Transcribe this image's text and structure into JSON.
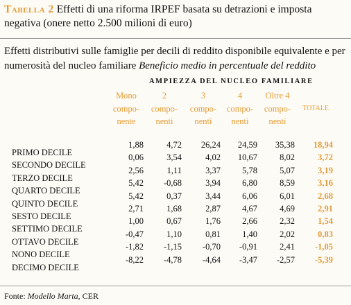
{
  "header": {
    "label": "Tabella 2",
    "title": "Effetti di una riforma IRPEF basata su detrazioni e imposta negativa (onere netto 2.500 milioni di euro)"
  },
  "subtitle": {
    "text": "Effetti distributivi sulle famiglie per decili di reddito disponibile equivalente e per numerosità del nucleo familiare",
    "emphasis": "Beneficio medio in percentuale del reddito"
  },
  "table": {
    "group_header": "AMPIEZZA DEL NUCLEO FAMILIARE",
    "columns": [
      [
        "Mono",
        "compo-",
        "nente"
      ],
      [
        "2",
        "compo-",
        "nenti"
      ],
      [
        "3",
        "compo-",
        "nenti"
      ],
      [
        "4",
        "compo-",
        "nenti"
      ],
      [
        "Oltre 4",
        "compo-",
        "nenti"
      ],
      [
        "TOTALE"
      ]
    ],
    "rows": [
      {
        "label": "PRIMO DECILE",
        "values": [
          "1,88",
          "4,72",
          "26,24",
          "24,59",
          "35,38",
          "18,94"
        ]
      },
      {
        "label": "SECONDO DECILE",
        "values": [
          "0,06",
          "3,54",
          "4,02",
          "10,67",
          "8,02",
          "3,72"
        ]
      },
      {
        "label": "TERZO DECILE",
        "values": [
          "2,56",
          "1,11",
          "3,37",
          "5,78",
          "5,07",
          "3,19"
        ]
      },
      {
        "label": "QUARTO DECILE",
        "values": [
          "5,42",
          "-0,68",
          "3,94",
          "6,80",
          "8,59",
          "3,16"
        ]
      },
      {
        "label": "QUINTO DECILE",
        "values": [
          "5,42",
          "0,37",
          "3,44",
          "6,06",
          "6,01",
          "2,68"
        ]
      },
      {
        "label": "SESTO DECILE",
        "values": [
          "2,71",
          "1,68",
          "2,87",
          "4,67",
          "4,69",
          "2,91"
        ]
      },
      {
        "label": "SETTIMO DECILE",
        "values": [
          "1,00",
          "0,67",
          "1,76",
          "2,66",
          "2,32",
          "1,54"
        ]
      },
      {
        "label": "OTTAVO DECILE",
        "values": [
          "-0,47",
          "1,10",
          "0,81",
          "1,40",
          "2,02",
          "0,83"
        ]
      },
      {
        "label": "NONO DECILE",
        "values": [
          "-1,82",
          "-1,15",
          "-0,70",
          "-0,91",
          "2,41",
          "-1,05"
        ]
      },
      {
        "label": "DECIMO DECILE",
        "values": [
          "-8,22",
          "-4,78",
          "-4,64",
          "-3,47",
          "-2,57",
          "-5,39"
        ]
      }
    ]
  },
  "source": {
    "label": "Fonte:",
    "model": "Modello Marta",
    "rest": ", CER"
  }
}
